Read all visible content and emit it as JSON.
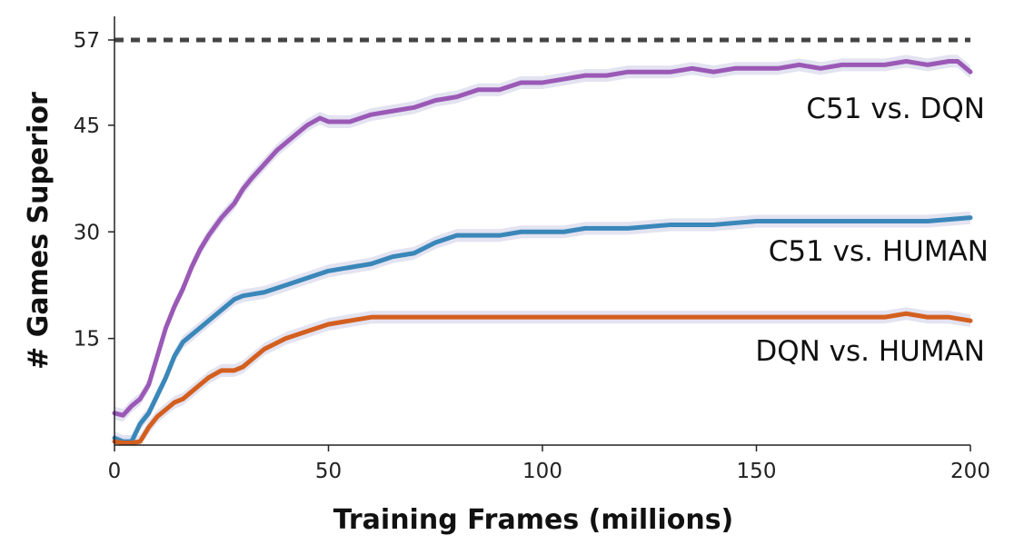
{
  "chart_data": {
    "type": "line",
    "title": "",
    "xlabel": "Training Frames (millions)",
    "ylabel": "# Games Superior",
    "xlim": [
      0,
      200
    ],
    "ylim": [
      0,
      57
    ],
    "xticks": [
      0,
      50,
      100,
      150,
      200
    ],
    "yticks": [
      15,
      30,
      45,
      57
    ],
    "grid": false,
    "legend": "inline labels at right end of each series",
    "reference_line": {
      "y": 57,
      "style": "dashed",
      "color": "#444444"
    },
    "series": [
      {
        "name": "C51 vs. DQN",
        "color": "#9b59b6",
        "band_color": "#dcdcee",
        "x": [
          0,
          2,
          4,
          6,
          8,
          10,
          12,
          14,
          16,
          18,
          20,
          22,
          25,
          28,
          30,
          32,
          35,
          38,
          40,
          43,
          45,
          48,
          50,
          55,
          60,
          65,
          70,
          75,
          80,
          85,
          90,
          95,
          100,
          105,
          110,
          115,
          120,
          125,
          130,
          135,
          140,
          145,
          150,
          155,
          160,
          165,
          170,
          175,
          180,
          185,
          190,
          195,
          197,
          200
        ],
        "y": [
          4.5,
          4.2,
          5.5,
          6.5,
          8.5,
          12.5,
          16.5,
          19.5,
          22,
          25,
          27.5,
          29.5,
          32,
          34,
          36,
          37.5,
          39.5,
          41.5,
          42.5,
          44,
          45,
          46,
          45.5,
          45.5,
          46.5,
          47,
          47.5,
          48.5,
          49,
          50,
          50,
          51,
          51,
          51.5,
          52,
          52,
          52.5,
          52.5,
          52.5,
          53,
          52.5,
          53,
          53,
          53,
          53.5,
          53,
          53.5,
          53.5,
          53.5,
          54,
          53.5,
          54,
          54,
          52.5
        ]
      },
      {
        "name": "C51 vs. HUMAN",
        "color": "#3a87b9",
        "band_color": "#dcdcee",
        "x": [
          0,
          2,
          4,
          6,
          8,
          10,
          12,
          14,
          16,
          18,
          20,
          22,
          25,
          28,
          30,
          35,
          40,
          45,
          50,
          55,
          60,
          65,
          70,
          75,
          80,
          85,
          90,
          95,
          100,
          105,
          110,
          115,
          120,
          130,
          140,
          150,
          160,
          170,
          180,
          190,
          200
        ],
        "y": [
          1,
          0.5,
          0.5,
          3,
          4.5,
          7,
          9.5,
          12.5,
          14.5,
          15.5,
          16.5,
          17.5,
          19,
          20.5,
          21,
          21.5,
          22.5,
          23.5,
          24.5,
          25,
          25.5,
          26.5,
          27,
          28.5,
          29.5,
          29.5,
          29.5,
          30,
          30,
          30,
          30.5,
          30.5,
          30.5,
          31,
          31,
          31.5,
          31.5,
          31.5,
          31.5,
          31.5,
          32
        ]
      },
      {
        "name": "DQN vs. HUMAN",
        "color": "#d35f1f",
        "band_color": "#dcdcee",
        "x": [
          0,
          2,
          4,
          6,
          8,
          10,
          12,
          14,
          16,
          18,
          20,
          22,
          25,
          28,
          30,
          35,
          40,
          45,
          50,
          55,
          60,
          65,
          70,
          75,
          80,
          90,
          100,
          110,
          120,
          130,
          140,
          150,
          160,
          170,
          180,
          185,
          190,
          195,
          200
        ],
        "y": [
          0.5,
          0.3,
          0.3,
          0.5,
          2.5,
          4,
          5,
          6,
          6.5,
          7.5,
          8.5,
          9.5,
          10.5,
          10.5,
          11,
          13.5,
          15,
          16,
          17,
          17.5,
          18,
          18,
          18,
          18,
          18,
          18,
          18,
          18,
          18,
          18,
          18,
          18,
          18,
          18,
          18,
          18.5,
          18,
          18,
          17.5
        ]
      }
    ]
  },
  "labels": {
    "c51_dqn": "C51 vs. DQN",
    "c51_human": "C51 vs. HUMAN",
    "dqn_human": "DQN vs. HUMAN"
  }
}
